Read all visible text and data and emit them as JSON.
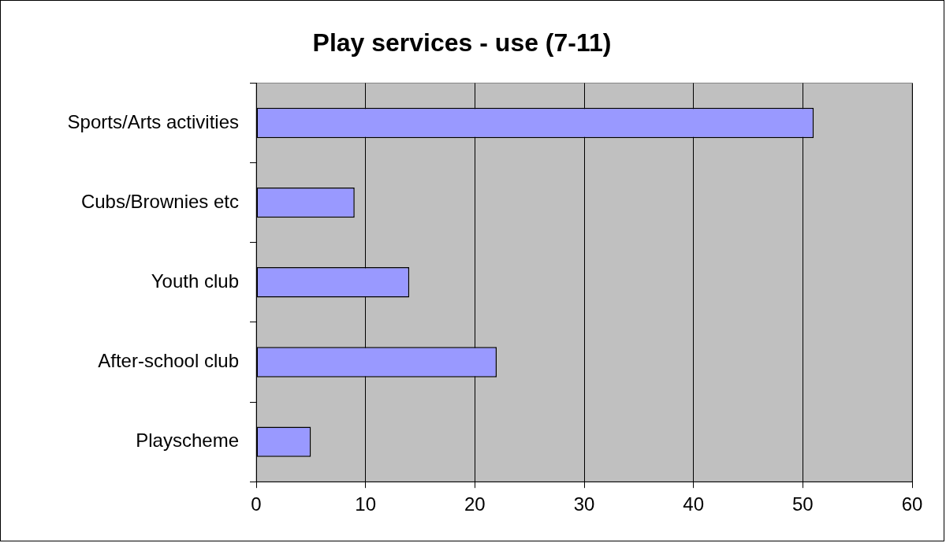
{
  "chart_data": {
    "type": "bar",
    "orientation": "horizontal",
    "title": "Play services - use (7-11)",
    "categories": [
      "Sports/Arts activities",
      "Cubs/Brownies etc",
      "Youth club",
      "After-school club",
      "Playscheme"
    ],
    "values": [
      51,
      9,
      14,
      22,
      5
    ],
    "color": "#9999ff",
    "xlim": [
      0,
      60
    ],
    "xticks": [
      0,
      10,
      20,
      30,
      40,
      50,
      60
    ],
    "grid": "x",
    "legend": false
  }
}
